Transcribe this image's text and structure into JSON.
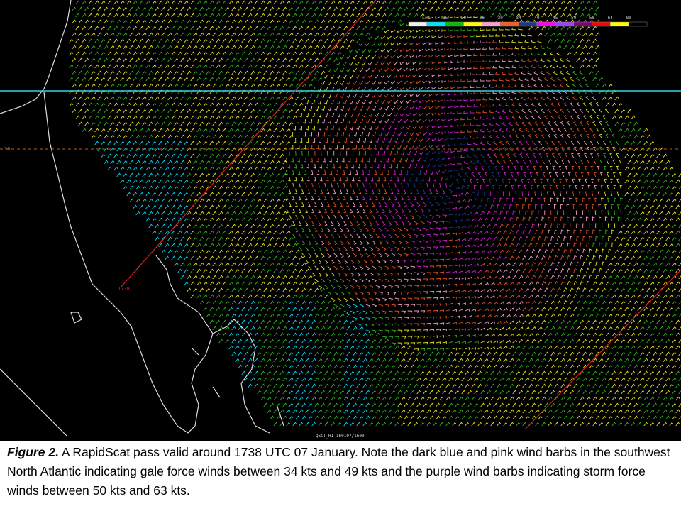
{
  "map": {
    "legend": {
      "labels": [
        "10",
        "15",
        "20",
        "25",
        "30",
        "34",
        "40",
        "45",
        "50",
        "55",
        "64",
        "80"
      ],
      "colors": [
        "#f2f2f2",
        "#00e5ff",
        "#00c000",
        "#ffff00",
        "#ff9ec8",
        "#ff5a1e",
        "#1a3a8a",
        "#ff00ff",
        "#a040ff",
        "#800080",
        "#ff0000",
        "#ffff00",
        "#000000"
      ]
    },
    "pass_time_label": "1738",
    "latitude_label": "30",
    "product_label": "QSCT_HI 160107/1600"
  },
  "caption": {
    "label": "Figure 2.",
    "text": "A RapidScat pass valid around 1738 UTC 07 January. Note the dark blue and pink wind barbs in the southwest North Atlantic indicating gale force winds between 34 kts and 49 kts and the purple wind barbs indicating storm force winds between 50 kts and 63 kts."
  }
}
